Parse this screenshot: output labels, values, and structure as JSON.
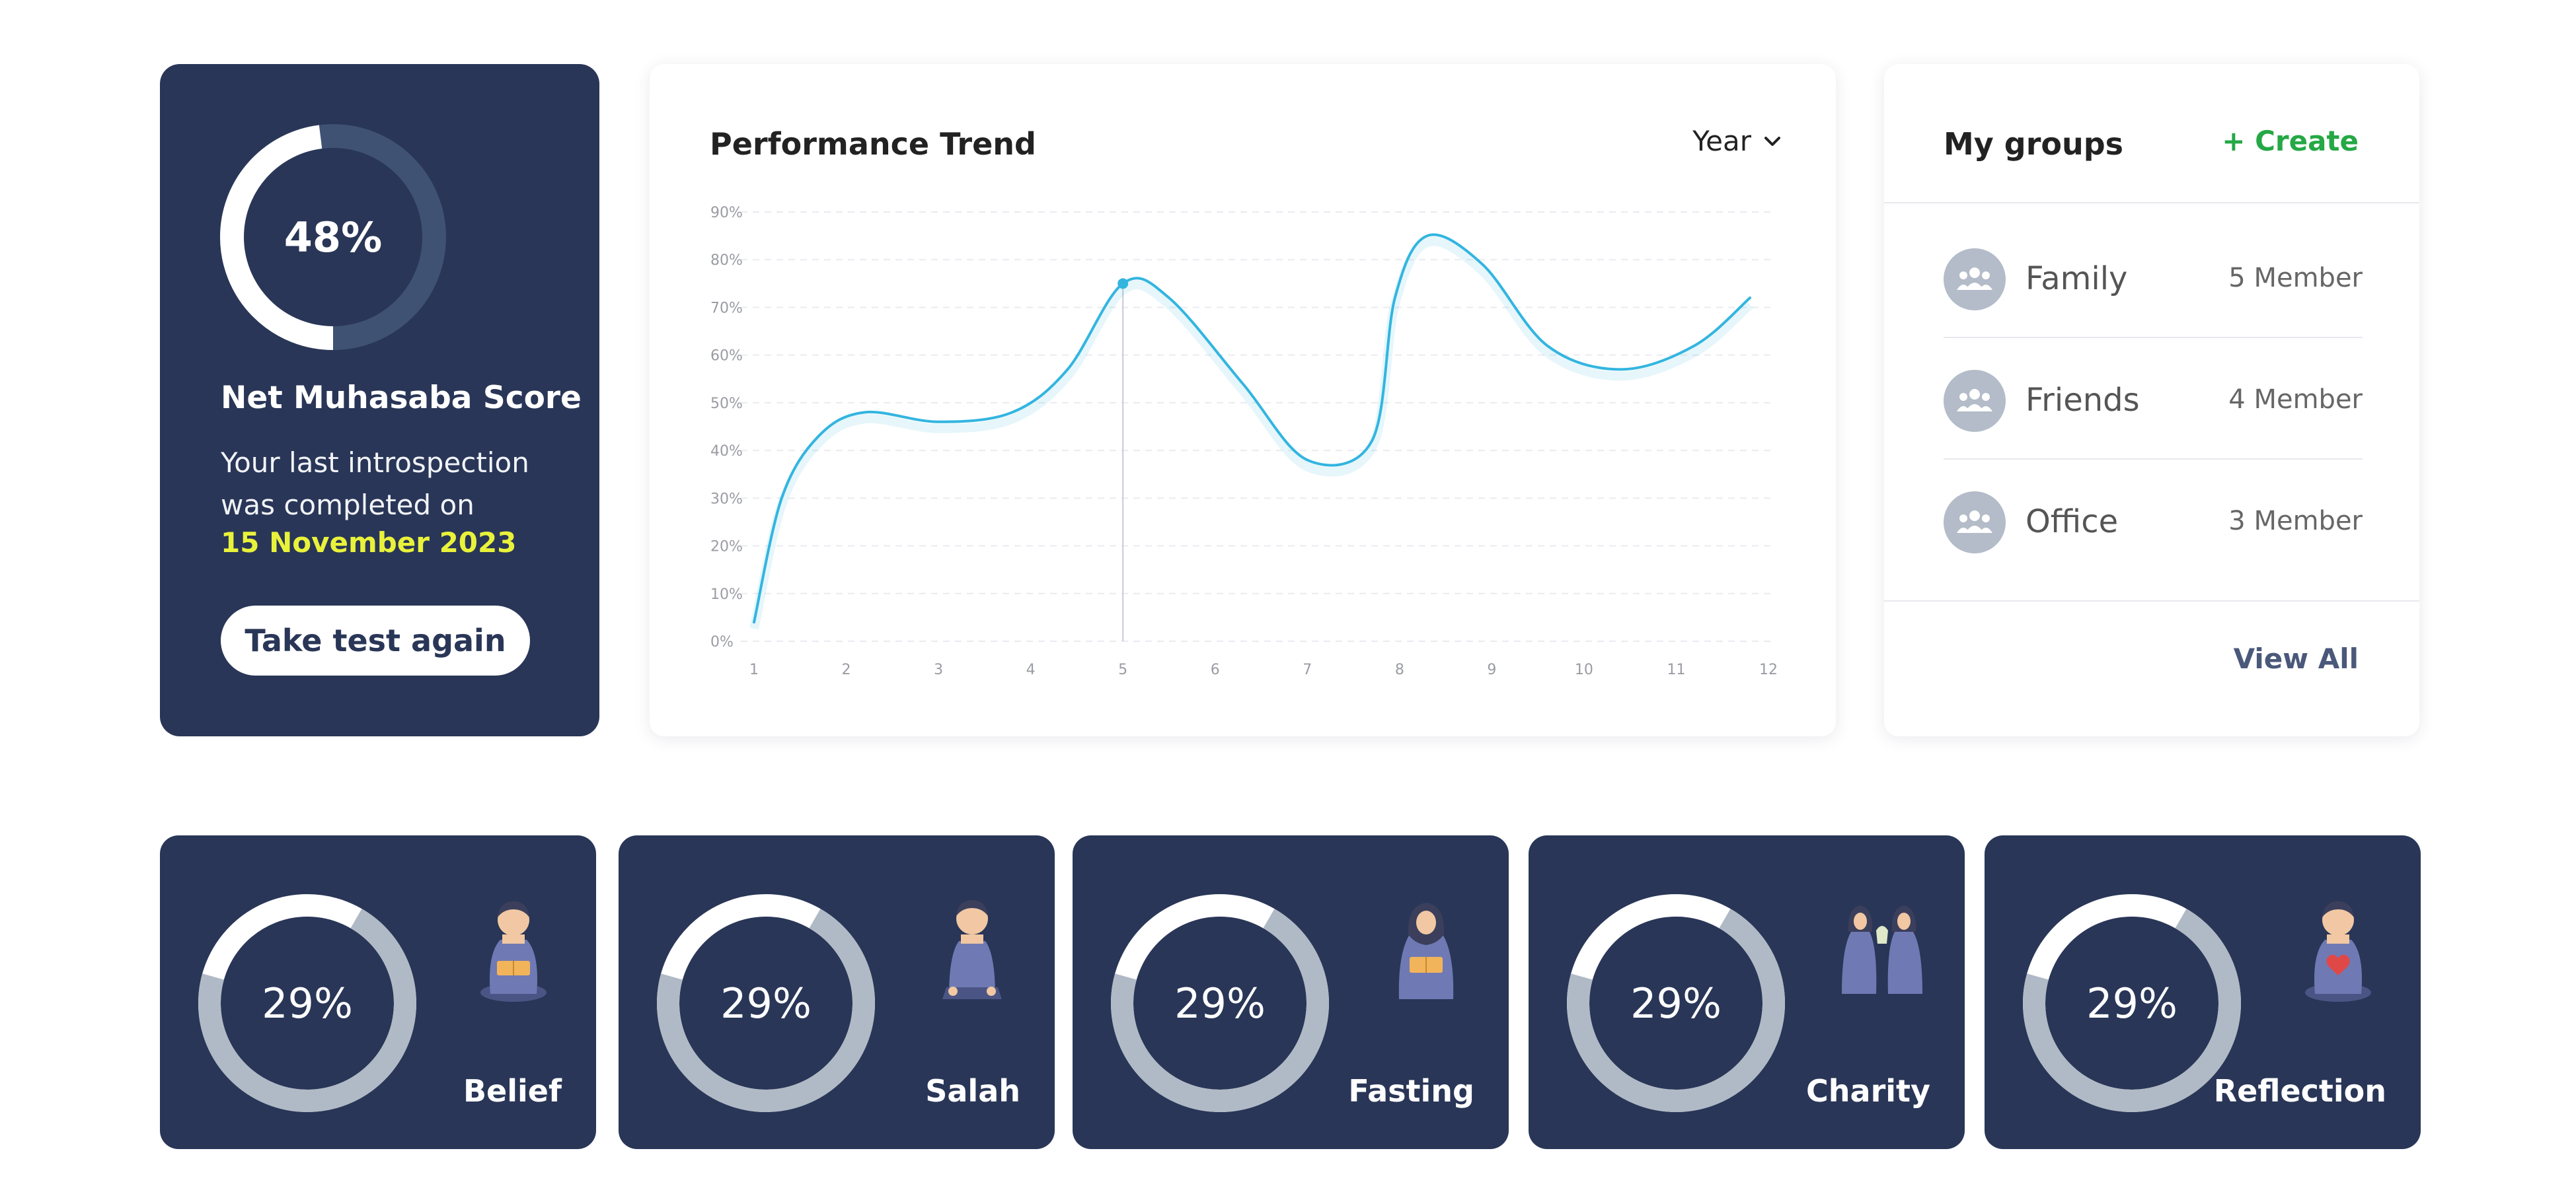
{
  "score": {
    "percent": 48,
    "percent_label": "48%",
    "title": "Net Muhasaba Score",
    "description": "Your last introspection was completed on",
    "date": "15 November 2023",
    "retake_label": "Take test again",
    "ring_fill_color": "#ffffff",
    "ring_track_color": "#3f5273"
  },
  "trend": {
    "title": "Performance Trend",
    "period": "Year",
    "chart_data": {
      "type": "line",
      "x": [
        1,
        2,
        3,
        4,
        5,
        6,
        7,
        8,
        9,
        10,
        11,
        12
      ],
      "y_ticks": [
        "0%",
        "10%",
        "20%",
        "30%",
        "40%",
        "50%",
        "60%",
        "70%",
        "80%",
        "90%"
      ],
      "x_ticks": [
        "1",
        "2",
        "3",
        "4",
        "5",
        "6",
        "7",
        "8",
        "9",
        "10",
        "11",
        "12"
      ],
      "ylim": [
        0,
        90
      ],
      "series": [
        {
          "points": [
            [
              1.0,
              4
            ],
            [
              1.3,
              30
            ],
            [
              1.7,
              43
            ],
            [
              2.2,
              48
            ],
            [
              3.0,
              46
            ],
            [
              3.8,
              48
            ],
            [
              4.4,
              57
            ],
            [
              5.0,
              75
            ],
            [
              5.5,
              72
            ],
            [
              6.3,
              54
            ],
            [
              7.0,
              38
            ],
            [
              7.7,
              42
            ],
            [
              7.95,
              72
            ],
            [
              8.3,
              85
            ],
            [
              8.9,
              79
            ],
            [
              9.6,
              62
            ],
            [
              10.4,
              57
            ],
            [
              11.2,
              62
            ],
            [
              11.8,
              72
            ]
          ],
          "color": "#33b5e0"
        }
      ],
      "highlight_x": 5,
      "highlight_y": 75,
      "grid": true
    }
  },
  "groups": {
    "title": "My groups",
    "create_label": "+ Create",
    "items": [
      {
        "name": "Family",
        "count": "5 Member"
      },
      {
        "name": "Friends",
        "count": "4 Member"
      },
      {
        "name": "Office",
        "count": "3 Member"
      }
    ],
    "view_all_label": "View All"
  },
  "categories": [
    {
      "label": "Belief",
      "percent": 29,
      "percent_label": "29%",
      "icon": "reading-person-icon"
    },
    {
      "label": "Salah",
      "percent": 29,
      "percent_label": "29%",
      "icon": "praying-person-icon"
    },
    {
      "label": "Fasting",
      "percent": 29,
      "percent_label": "29%",
      "icon": "woman-reading-icon"
    },
    {
      "label": "Charity",
      "percent": 29,
      "percent_label": "29%",
      "icon": "giving-people-icon"
    },
    {
      "label": "Reflection",
      "percent": 29,
      "percent_label": "29%",
      "icon": "person-heart-icon"
    }
  ],
  "colors": {
    "card_navy": "#293657",
    "accent_yellow": "#e9f23a",
    "create_green": "#25a845",
    "category_ring_fill": "#b0bac6",
    "category_ring_remaining": "#ffffff"
  }
}
